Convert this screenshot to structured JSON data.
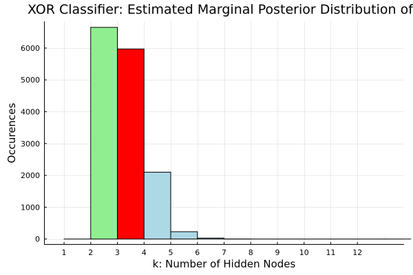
{
  "chart_data": {
    "type": "bar",
    "title": "XOR Classifier: Estimated Marginal Posterior Distribution of k",
    "xlabel": "k: Number of Hidden Nodes",
    "ylabel": "Occurences",
    "x_ticks": [
      1,
      2,
      3,
      4,
      5,
      6,
      7,
      8,
      9,
      10,
      11,
      12
    ],
    "y_ticks": [
      0,
      1000,
      2000,
      3000,
      4000,
      5000,
      6000
    ],
    "xlim": [
      0.25,
      13.75
    ],
    "ylim": [
      -180,
      6840
    ],
    "grid": true,
    "legend": "none",
    "bins": [
      {
        "start": 1,
        "end": 2,
        "value": 0,
        "color": "#add8e6"
      },
      {
        "start": 2,
        "end": 3,
        "value": 6650,
        "color": "#90ee90"
      },
      {
        "start": 3,
        "end": 4,
        "value": 5970,
        "color": "#ff0000"
      },
      {
        "start": 4,
        "end": 5,
        "value": 2100,
        "color": "#add8e6"
      },
      {
        "start": 5,
        "end": 6,
        "value": 230,
        "color": "#add8e6"
      },
      {
        "start": 6,
        "end": 7,
        "value": 30,
        "color": "#add8e6"
      },
      {
        "start": 7,
        "end": 8,
        "value": 3,
        "color": "#add8e6"
      },
      {
        "start": 8,
        "end": 9,
        "value": 0,
        "color": "#add8e6"
      },
      {
        "start": 9,
        "end": 10,
        "value": 0,
        "color": "#add8e6"
      },
      {
        "start": 10,
        "end": 11,
        "value": 0,
        "color": "#add8e6"
      },
      {
        "start": 11,
        "end": 12,
        "value": 0,
        "color": "#add8e6"
      },
      {
        "start": 12,
        "end": 13,
        "value": 0,
        "color": "#add8e6"
      },
      {
        "start": 13,
        "end": 14,
        "value": 0,
        "color": "#add8e6"
      }
    ]
  }
}
